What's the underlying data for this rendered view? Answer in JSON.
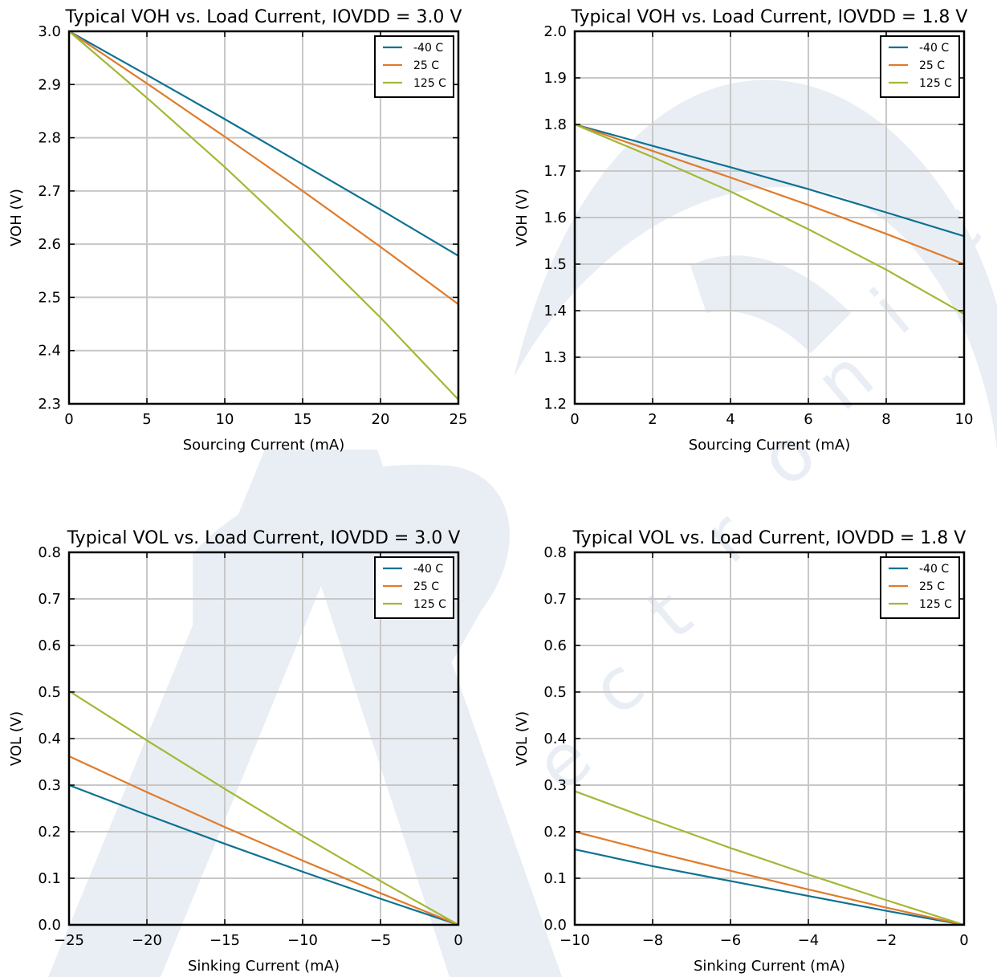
{
  "watermark": {
    "color": "#e9eef5",
    "letters": "electronic"
  },
  "colors": {
    "series": [
      "#0d7291",
      "#e07b2b",
      "#a3b835"
    ],
    "grid": "#c8c8c8",
    "axis": "#000000"
  },
  "chart_data": [
    {
      "type": "line",
      "title": "Typical VOH vs. Load Current, IOVDD = 3.0 V",
      "xlabel": "Sourcing Current (mA)",
      "ylabel": "VOH (V)",
      "xlim": [
        0,
        25
      ],
      "ylim": [
        2.3,
        3.0
      ],
      "xticks": [
        0,
        5,
        10,
        15,
        20,
        25
      ],
      "xtick_labels": [
        "0",
        "5",
        "10",
        "15",
        "20",
        "25"
      ],
      "yticks": [
        2.3,
        2.4,
        2.5,
        2.6,
        2.7,
        2.8,
        2.9,
        3.0
      ],
      "ytick_labels": [
        "2.3",
        "2.4",
        "2.5",
        "2.6",
        "2.7",
        "2.8",
        "2.9",
        "3.0"
      ],
      "grid": true,
      "legend_position": "top-right",
      "series": [
        {
          "name": "-40 C",
          "x": [
            0,
            5,
            10,
            15,
            20,
            25
          ],
          "y": [
            3.0,
            2.918,
            2.835,
            2.75,
            2.665,
            2.578
          ]
        },
        {
          "name": "25 C",
          "x": [
            0,
            5,
            10,
            15,
            20,
            25
          ],
          "y": [
            3.0,
            2.902,
            2.802,
            2.7,
            2.595,
            2.487
          ]
        },
        {
          "name": "125 C",
          "x": [
            0,
            5,
            10,
            15,
            20,
            25
          ],
          "y": [
            3.0,
            2.875,
            2.745,
            2.607,
            2.462,
            2.308
          ]
        }
      ]
    },
    {
      "type": "line",
      "title": "Typical VOH vs. Load Current, IOVDD = 1.8 V",
      "xlabel": "Sourcing Current (mA)",
      "ylabel": "VOH (V)",
      "xlim": [
        0,
        10
      ],
      "ylim": [
        1.2,
        2.0
      ],
      "xticks": [
        0,
        2,
        4,
        6,
        8,
        10
      ],
      "xtick_labels": [
        "0",
        "2",
        "4",
        "6",
        "8",
        "10"
      ],
      "yticks": [
        1.2,
        1.3,
        1.4,
        1.5,
        1.6,
        1.7,
        1.8,
        1.9,
        2.0
      ],
      "ytick_labels": [
        "1.2",
        "1.3",
        "1.4",
        "1.5",
        "1.6",
        "1.7",
        "1.8",
        "1.9",
        "2.0"
      ],
      "grid": true,
      "legend_position": "top-right",
      "series": [
        {
          "name": "-40 C",
          "x": [
            0,
            2,
            4,
            6,
            8,
            10
          ],
          "y": [
            1.8,
            1.754,
            1.708,
            1.661,
            1.611,
            1.56
          ]
        },
        {
          "name": "25 C",
          "x": [
            0,
            2,
            4,
            6,
            8,
            10
          ],
          "y": [
            1.8,
            1.743,
            1.686,
            1.627,
            1.565,
            1.5
          ]
        },
        {
          "name": "125 C",
          "x": [
            0,
            2,
            4,
            6,
            8,
            10
          ],
          "y": [
            1.8,
            1.73,
            1.656,
            1.575,
            1.488,
            1.393
          ]
        }
      ]
    },
    {
      "type": "line",
      "title": "Typical VOL vs. Load Current, IOVDD = 3.0 V",
      "xlabel": "Sinking Current (mA)",
      "ylabel": "VOL (V)",
      "xlim": [
        -25,
        0
      ],
      "ylim": [
        0.0,
        0.8
      ],
      "xticks": [
        -25,
        -20,
        -15,
        -10,
        -5,
        0
      ],
      "xtick_labels": [
        "−25",
        "−20",
        "−15",
        "−10",
        "−5",
        "0"
      ],
      "yticks": [
        0.0,
        0.1,
        0.2,
        0.3,
        0.4,
        0.5,
        0.6,
        0.7,
        0.8
      ],
      "ytick_labels": [
        "0.0",
        "0.1",
        "0.2",
        "0.3",
        "0.4",
        "0.5",
        "0.6",
        "0.7",
        "0.8"
      ],
      "grid": true,
      "legend_position": "top-right",
      "series": [
        {
          "name": "-40 C",
          "x": [
            -25,
            -20,
            -15,
            -10,
            -5,
            0
          ],
          "y": [
            0.3,
            0.236,
            0.174,
            0.114,
            0.056,
            0.0
          ]
        },
        {
          "name": "25 C",
          "x": [
            -25,
            -20,
            -15,
            -10,
            -5,
            0
          ],
          "y": [
            0.362,
            0.285,
            0.21,
            0.138,
            0.068,
            0.0
          ]
        },
        {
          "name": "125 C",
          "x": [
            -25,
            -20,
            -15,
            -10,
            -5,
            0
          ],
          "y": [
            0.502,
            0.396,
            0.292,
            0.191,
            0.094,
            0.0
          ]
        }
      ]
    },
    {
      "type": "line",
      "title": "Typical VOL vs. Load Current, IOVDD = 1.8 V",
      "xlabel": "Sinking Current (mA)",
      "ylabel": "VOL (V)",
      "xlim": [
        -10,
        0
      ],
      "ylim": [
        0.0,
        0.8
      ],
      "xticks": [
        -10,
        -8,
        -6,
        -4,
        -2,
        0
      ],
      "xtick_labels": [
        "−10",
        "−8",
        "−6",
        "−4",
        "−2",
        "0"
      ],
      "yticks": [
        0.0,
        0.1,
        0.2,
        0.3,
        0.4,
        0.5,
        0.6,
        0.7,
        0.8
      ],
      "ytick_labels": [
        "0.0",
        "0.1",
        "0.2",
        "0.3",
        "0.4",
        "0.5",
        "0.6",
        "0.7",
        "0.8"
      ],
      "grid": true,
      "legend_position": "top-right",
      "series": [
        {
          "name": "-40 C",
          "x": [
            -10,
            -8,
            -6,
            -4,
            -2,
            0
          ],
          "y": [
            0.162,
            0.126,
            0.094,
            0.062,
            0.03,
            0.0
          ]
        },
        {
          "name": "25 C",
          "x": [
            -10,
            -8,
            -6,
            -4,
            -2,
            0
          ],
          "y": [
            0.2,
            0.157,
            0.116,
            0.076,
            0.037,
            0.0
          ]
        },
        {
          "name": "125 C",
          "x": [
            -10,
            -8,
            -6,
            -4,
            -2,
            0
          ],
          "y": [
            0.287,
            0.225,
            0.165,
            0.108,
            0.053,
            0.0
          ]
        }
      ]
    }
  ]
}
